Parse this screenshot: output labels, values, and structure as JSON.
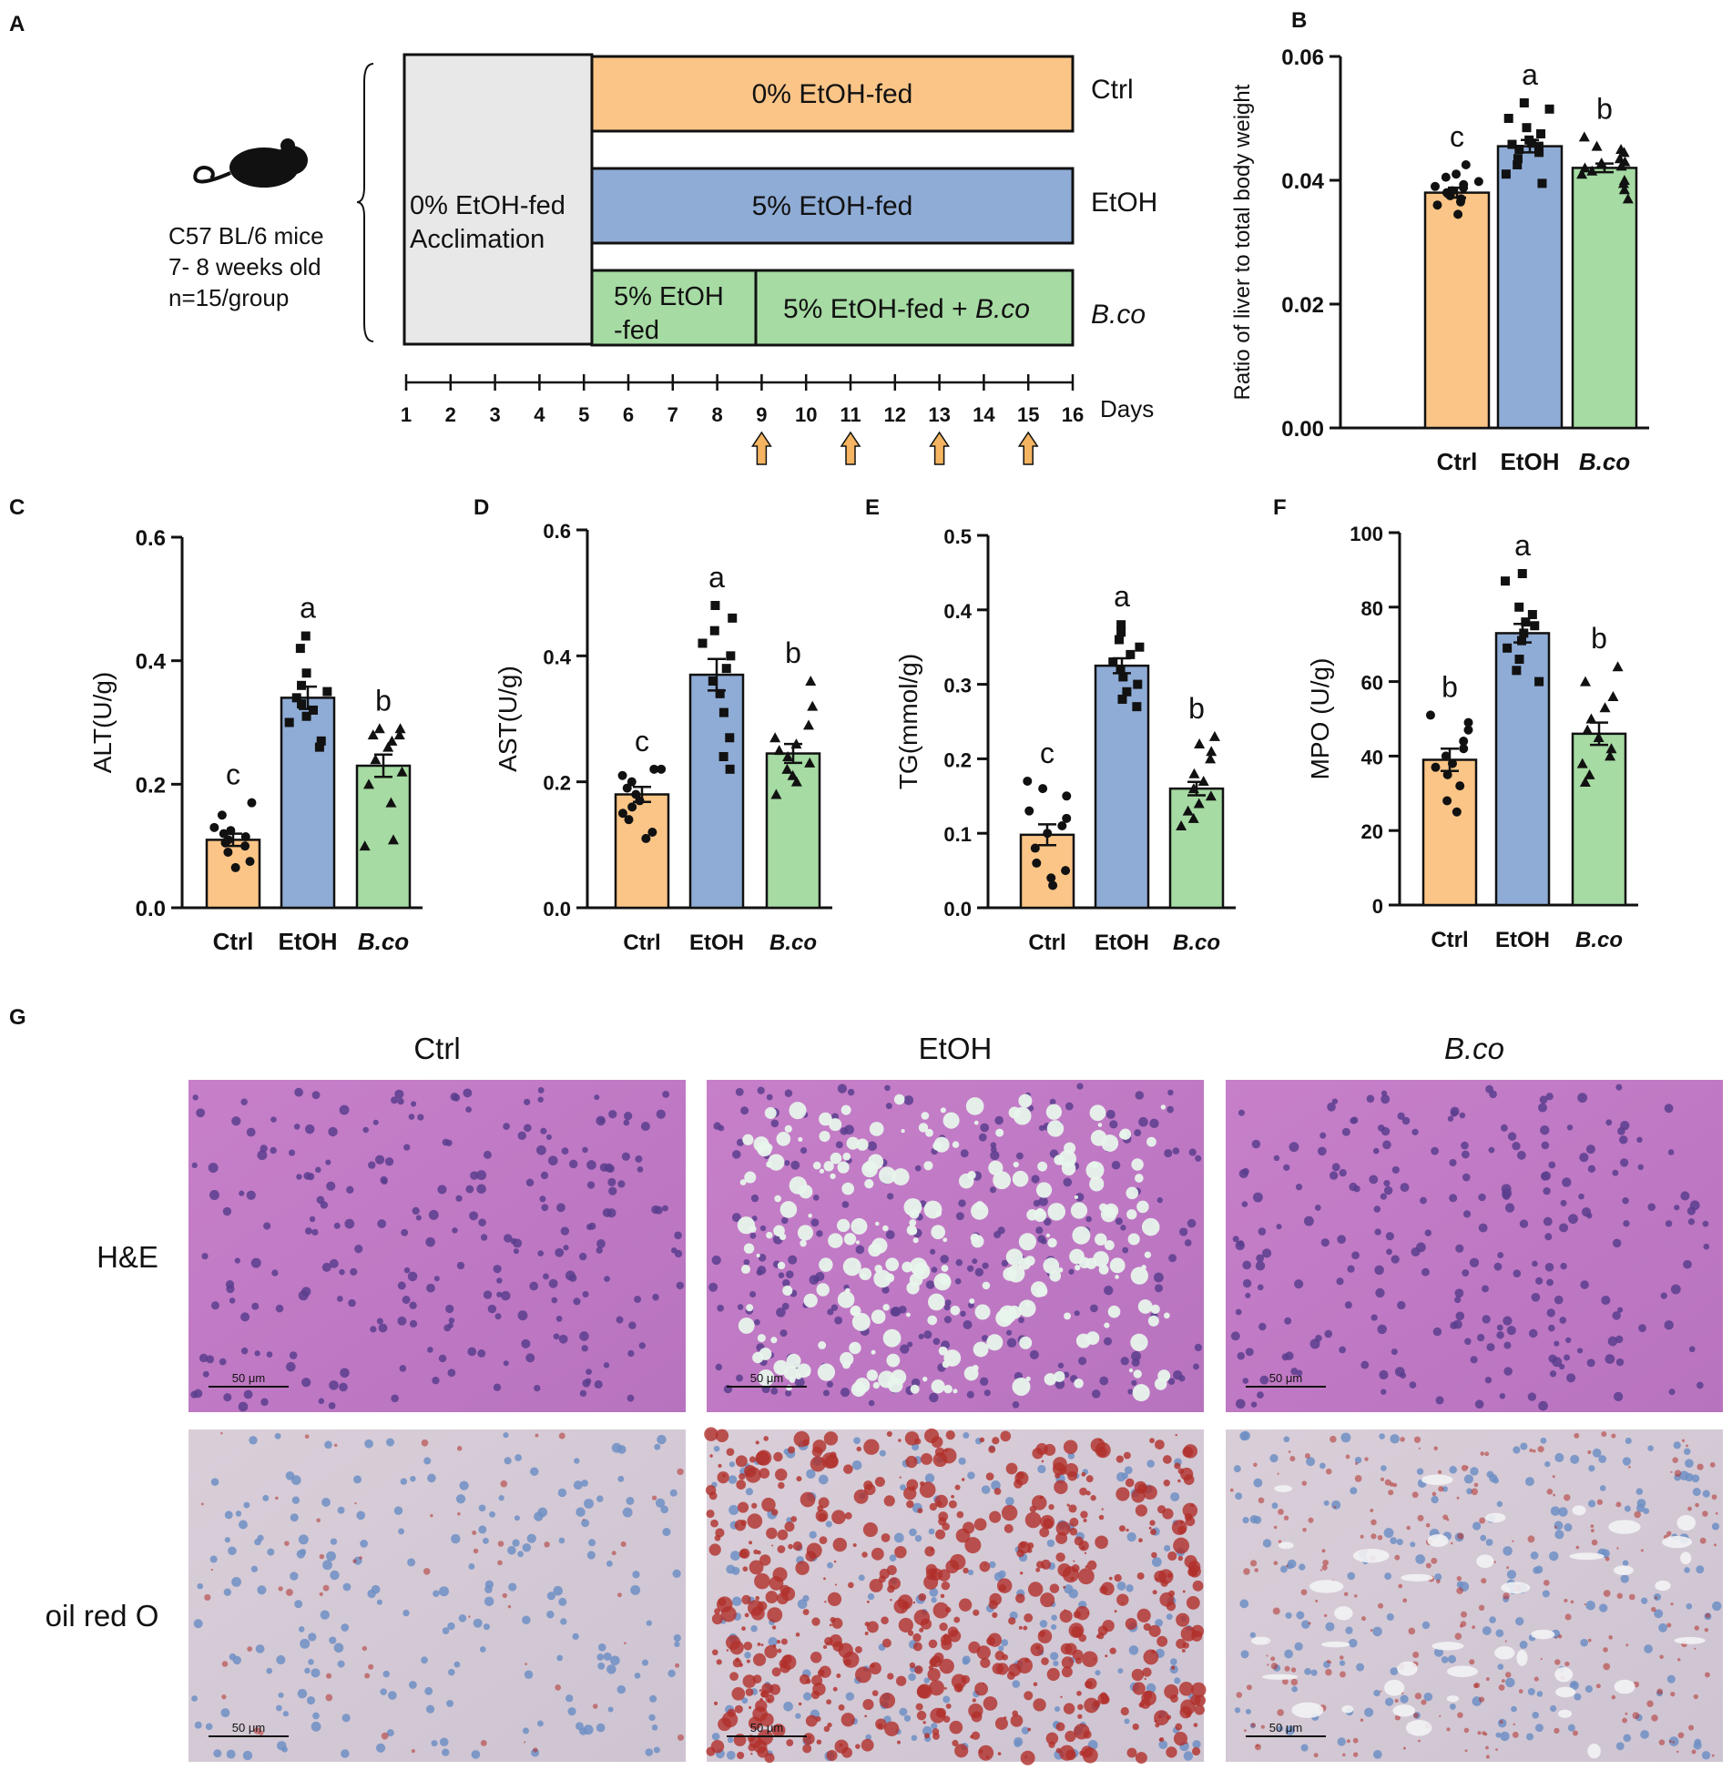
{
  "panels": {
    "A": {
      "label": "A",
      "mouse_text": [
        "C57 BL/6 mice",
        "7- 8 weeks old",
        "n=15/group"
      ],
      "acclimation": [
        "0% EtOH-fed",
        "Acclimation"
      ],
      "rows": [
        {
          "group": "Ctrl",
          "group_italic": false,
          "segments": [
            {
              "text": "0% EtOH-fed",
              "color": "#FBC587"
            }
          ]
        },
        {
          "group": "EtOH",
          "group_italic": false,
          "segments": [
            {
              "text": "5% EtOH-fed",
              "color": "#8FACD6"
            }
          ]
        },
        {
          "group": "B.co",
          "group_italic": true,
          "segments": [
            {
              "lines": [
                "5% EtOH",
                "-fed"
              ],
              "color": "#A6DBA3"
            },
            {
              "text": "5% EtOH-fed + ",
              "italic": "B.co",
              "color": "#A6DBA3"
            }
          ]
        }
      ],
      "days": [
        "1",
        "2",
        "3",
        "4",
        "5",
        "6",
        "7",
        "8",
        "9",
        "10",
        "11",
        "12",
        "13",
        "14",
        "15",
        "16"
      ],
      "days_label": "Days",
      "arrow_days": [
        9,
        11,
        13,
        15
      ],
      "colors": {
        "acclimation": "#E8E8E8",
        "arrow": "#F5B461"
      }
    },
    "G": {
      "label": "G",
      "columns": [
        "Ctrl",
        "EtOH",
        "B.co"
      ],
      "rows": [
        "H&E",
        "oil red O"
      ],
      "scalebar": "50 μm"
    }
  },
  "chart_data": [
    {
      "panel": "B",
      "type": "bar",
      "categories": [
        "Ctrl",
        "EtOH",
        "B.co"
      ],
      "values": [
        0.038,
        0.0455,
        0.042
      ],
      "sem": [
        0.0008,
        0.001,
        0.0007
      ],
      "letters": [
        "c",
        "a",
        "b"
      ],
      "ylabel": "Ratio of liver to total body weight",
      "ylim": [
        0,
        0.06
      ],
      "yticks": [
        "0.00",
        "0.02",
        "0.04",
        "0.06"
      ],
      "colors": [
        "#FBC587",
        "#8FACD6",
        "#A6DBA3"
      ],
      "points": [
        [
          0.0345,
          0.036,
          0.0365,
          0.037,
          0.0375,
          0.0378,
          0.038,
          0.0383,
          0.0388,
          0.039,
          0.0393,
          0.0398,
          0.0405,
          0.041,
          0.0425
        ],
        [
          0.0395,
          0.041,
          0.0425,
          0.0435,
          0.0445,
          0.045,
          0.0455,
          0.0458,
          0.046,
          0.0465,
          0.0475,
          0.0485,
          0.05,
          0.0515,
          0.0525
        ],
        [
          0.037,
          0.0385,
          0.0395,
          0.04,
          0.041,
          0.0415,
          0.042,
          0.0423,
          0.0428,
          0.043,
          0.0435,
          0.0445,
          0.045,
          0.0455,
          0.047
        ]
      ]
    },
    {
      "panel": "C",
      "type": "bar",
      "categories": [
        "Ctrl",
        "EtOH",
        "B.co"
      ],
      "values": [
        0.11,
        0.34,
        0.23
      ],
      "sem": [
        0.01,
        0.018,
        0.018
      ],
      "letters": [
        "c",
        "a",
        "b"
      ],
      "ylabel": "ALT(U/g)",
      "ylim": [
        0,
        0.6
      ],
      "yticks": [
        "0.0",
        "0.2",
        "0.4",
        "0.6"
      ],
      "colors": [
        "#FBC587",
        "#8FACD6",
        "#A6DBA3"
      ],
      "points": [
        [
          0.065,
          0.075,
          0.09,
          0.1,
          0.105,
          0.11,
          0.115,
          0.12,
          0.125,
          0.13,
          0.15,
          0.17
        ],
        [
          0.26,
          0.27,
          0.3,
          0.31,
          0.32,
          0.33,
          0.34,
          0.35,
          0.36,
          0.38,
          0.42,
          0.44
        ],
        [
          0.1,
          0.11,
          0.17,
          0.2,
          0.22,
          0.24,
          0.26,
          0.27,
          0.28,
          0.28,
          0.29,
          0.29
        ]
      ]
    },
    {
      "panel": "D",
      "type": "bar",
      "categories": [
        "Ctrl",
        "EtOH",
        "B.co"
      ],
      "values": [
        0.18,
        0.37,
        0.245
      ],
      "sem": [
        0.012,
        0.025,
        0.015
      ],
      "letters": [
        "c",
        "a",
        "b"
      ],
      "ylabel": "AST(U/g)",
      "ylim": [
        0,
        0.6
      ],
      "yticks": [
        "0.0",
        "0.2",
        "0.4",
        "0.6"
      ],
      "colors": [
        "#FBC587",
        "#8FACD6",
        "#A6DBA3"
      ],
      "points": [
        [
          0.11,
          0.12,
          0.14,
          0.15,
          0.16,
          0.17,
          0.18,
          0.19,
          0.2,
          0.21,
          0.22,
          0.22
        ],
        [
          0.22,
          0.24,
          0.27,
          0.31,
          0.34,
          0.36,
          0.38,
          0.4,
          0.42,
          0.44,
          0.46,
          0.48
        ],
        [
          0.18,
          0.2,
          0.21,
          0.22,
          0.23,
          0.24,
          0.25,
          0.26,
          0.27,
          0.29,
          0.32,
          0.36
        ]
      ]
    },
    {
      "panel": "E",
      "type": "bar",
      "categories": [
        "Ctrl",
        "EtOH",
        "B.co"
      ],
      "values": [
        0.098,
        0.325,
        0.16
      ],
      "sem": [
        0.014,
        0.01,
        0.009
      ],
      "letters": [
        "c",
        "a",
        "b"
      ],
      "ylabel": "TG(mmol/g)",
      "ylim": [
        0,
        0.5
      ],
      "yticks": [
        "0.0",
        "0.1",
        "0.2",
        "0.3",
        "0.4",
        "0.5"
      ],
      "colors": [
        "#FBC587",
        "#8FACD6",
        "#A6DBA3"
      ],
      "points": [
        [
          0.03,
          0.04,
          0.05,
          0.06,
          0.08,
          0.1,
          0.11,
          0.12,
          0.13,
          0.15,
          0.16,
          0.17
        ],
        [
          0.27,
          0.28,
          0.29,
          0.3,
          0.31,
          0.32,
          0.33,
          0.34,
          0.35,
          0.36,
          0.37,
          0.38
        ],
        [
          0.11,
          0.12,
          0.13,
          0.14,
          0.15,
          0.16,
          0.17,
          0.18,
          0.2,
          0.21,
          0.22,
          0.23
        ]
      ]
    },
    {
      "panel": "F",
      "type": "bar",
      "categories": [
        "Ctrl",
        "EtOH",
        "B.co"
      ],
      "values": [
        39,
        73,
        46
      ],
      "sem": [
        3,
        2.5,
        3
      ],
      "letters": [
        "b",
        "a",
        "b"
      ],
      "ylabel": "MPO (U/g)",
      "ylim": [
        0,
        100
      ],
      "yticks": [
        "0",
        "20",
        "40",
        "60",
        "80",
        "100"
      ],
      "colors": [
        "#FBC587",
        "#8FACD6",
        "#A6DBA3"
      ],
      "points": [
        [
          25,
          28,
          32,
          35,
          37,
          38,
          40,
          42,
          44,
          47,
          49,
          51
        ],
        [
          60,
          63,
          66,
          69,
          71,
          73,
          75,
          76,
          78,
          80,
          87,
          89
        ],
        [
          33,
          35,
          38,
          40,
          42,
          45,
          47,
          50,
          53,
          56,
          60,
          64
        ]
      ]
    }
  ]
}
